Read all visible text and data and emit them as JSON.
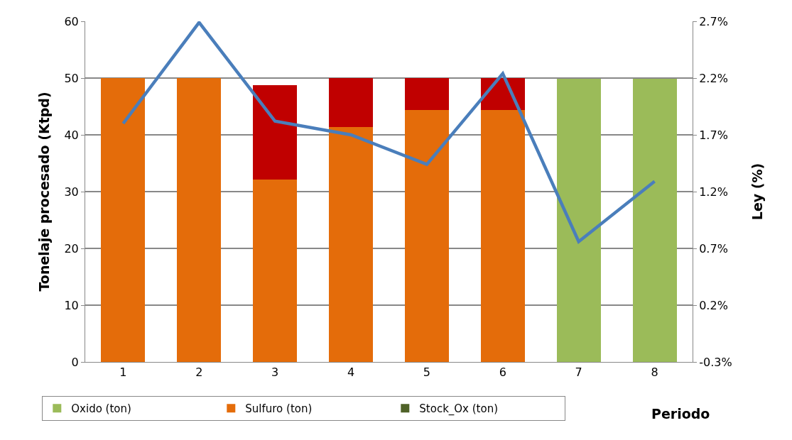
{
  "chart_data": {
    "type": "bar",
    "stacked": true,
    "xlabel": "Periodo",
    "ylabel": "Tonelaje procesado (Ktpd)",
    "y2label": "Ley (%)",
    "categories": [
      "1",
      "2",
      "3",
      "4",
      "5",
      "6",
      "7",
      "8"
    ],
    "series": [
      {
        "name": "Oxido (ton)",
        "color": "#9bbb59",
        "values": [
          null,
          null,
          null,
          null,
          null,
          null,
          49.9,
          49.9
        ]
      },
      {
        "name": "Sulfuro (ton)",
        "color": "#e46c0a",
        "values": [
          50,
          50,
          32.1,
          41.4,
          44.4,
          44.4,
          null,
          null
        ]
      },
      {
        "name": "Stock_Ox (ton)",
        "color": "#4f6228",
        "values": [
          null,
          null,
          null,
          null,
          null,
          null,
          null,
          null
        ]
      },
      {
        "color": "#c00000",
        "values": [
          null,
          null,
          16.7,
          8.6,
          5.6,
          5.6,
          null,
          null
        ]
      },
      {
        "type": "line",
        "axis": "y2",
        "color": "#4a7ebb",
        "values": [
          1.8,
          2.69,
          1.82,
          1.7,
          1.44,
          2.24,
          0.76,
          1.29
        ]
      }
    ],
    "ylim": [
      0,
      60
    ],
    "yticks": [
      0,
      10,
      20,
      30,
      40,
      50,
      60
    ],
    "y2lim": [
      -0.3,
      2.7
    ],
    "y2ticks": [
      {
        "value": -0.3,
        "label": "-0.3%"
      },
      {
        "value": 0.2,
        "label": "0.2%"
      },
      {
        "value": 0.7,
        "label": "0.7%"
      },
      {
        "value": 1.2,
        "label": "1.2%"
      },
      {
        "value": 1.7,
        "label": "1.7%"
      },
      {
        "value": 2.2,
        "label": "2.2%"
      },
      {
        "value": 2.7,
        "label": "2.7%"
      }
    ],
    "grid": "y",
    "legend": "bottom",
    "marker": "none",
    "line_style": "solid"
  }
}
